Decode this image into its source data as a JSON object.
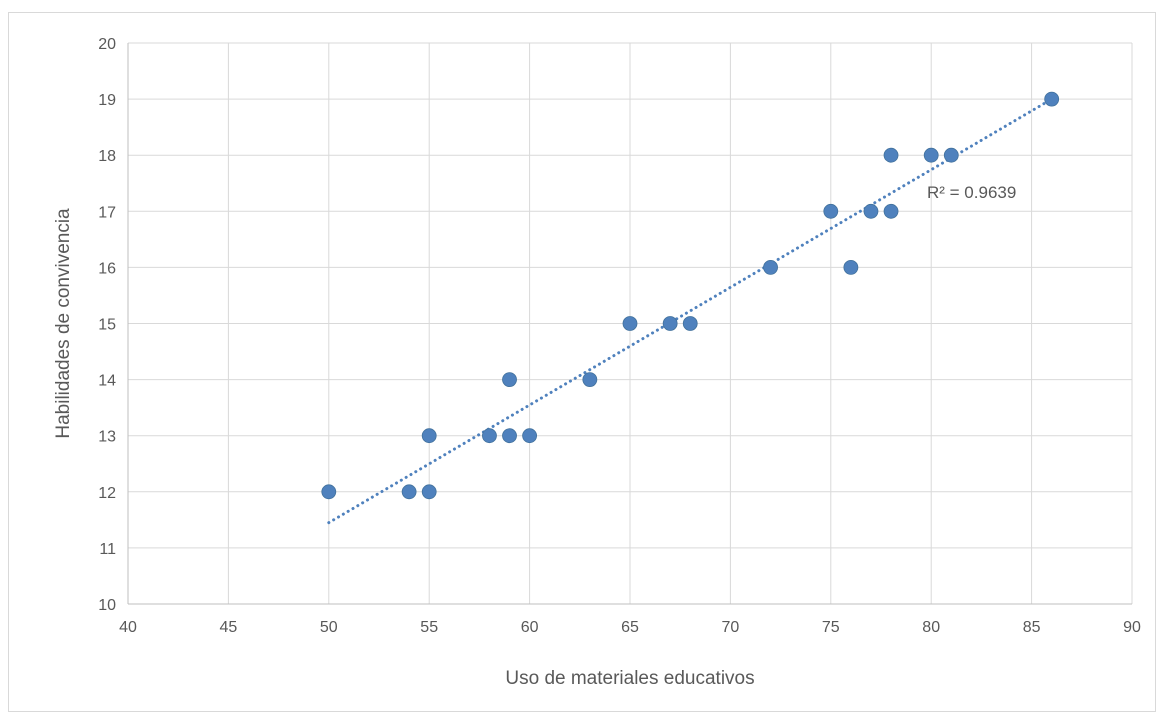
{
  "chart_data": {
    "type": "scatter",
    "title": "",
    "xlabel": "Uso de materiales educativos",
    "ylabel": "Habilidades  de convivencia",
    "xlim": [
      40,
      90
    ],
    "ylim": [
      10,
      20
    ],
    "xticks": [
      40,
      45,
      50,
      55,
      60,
      65,
      70,
      75,
      80,
      85,
      90
    ],
    "yticks": [
      10,
      11,
      12,
      13,
      14,
      15,
      16,
      17,
      18,
      19,
      20
    ],
    "grid": true,
    "legend": "none",
    "point_color": "#4f81bd",
    "trendline": {
      "style": "dotted",
      "color": "#4f81bd",
      "x_start": 50,
      "y_start": 11.45,
      "x_end": 86,
      "y_end": 19.0,
      "label": "R² = 0.9639"
    },
    "points": [
      {
        "x": 50,
        "y": 12
      },
      {
        "x": 54,
        "y": 12
      },
      {
        "x": 55,
        "y": 12
      },
      {
        "x": 55,
        "y": 13
      },
      {
        "x": 58,
        "y": 13
      },
      {
        "x": 59,
        "y": 13
      },
      {
        "x": 59,
        "y": 14
      },
      {
        "x": 60,
        "y": 13
      },
      {
        "x": 63,
        "y": 14
      },
      {
        "x": 65,
        "y": 15
      },
      {
        "x": 67,
        "y": 15
      },
      {
        "x": 68,
        "y": 15
      },
      {
        "x": 72,
        "y": 16
      },
      {
        "x": 75,
        "y": 17
      },
      {
        "x": 76,
        "y": 16
      },
      {
        "x": 77,
        "y": 17
      },
      {
        "x": 78,
        "y": 17
      },
      {
        "x": 78,
        "y": 18
      },
      {
        "x": 80,
        "y": 18
      },
      {
        "x": 81,
        "y": 18
      },
      {
        "x": 86,
        "y": 19
      }
    ]
  }
}
